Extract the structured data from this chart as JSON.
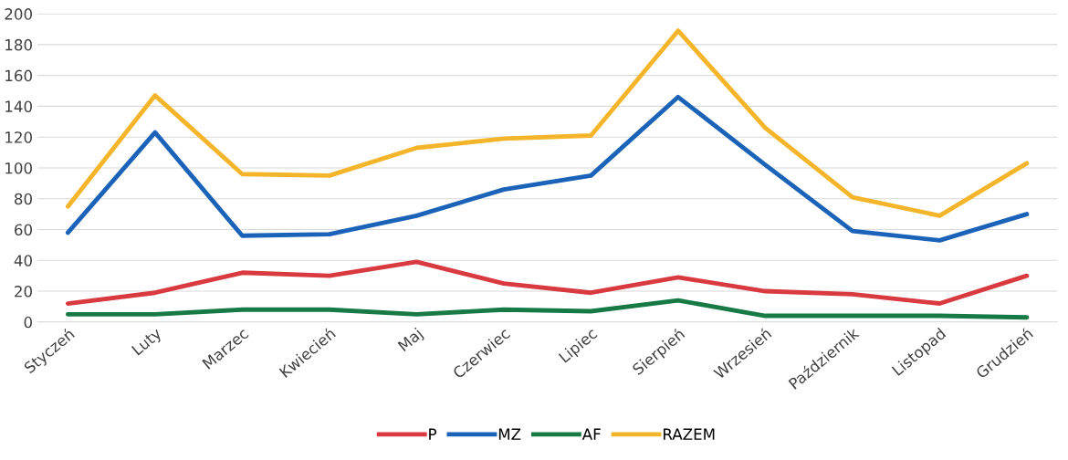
{
  "chart_data": {
    "type": "line",
    "categories": [
      "Styczeń",
      "Luty",
      "Marzec",
      "Kwiecień",
      "Maj",
      "Czerwiec",
      "Lipiec",
      "Sierpień",
      "Wrzesień",
      "Październik",
      "Listopad",
      "Grudzień"
    ],
    "series": [
      {
        "name": "P",
        "color": "#d93a3f",
        "values": [
          12,
          19,
          32,
          30,
          39,
          25,
          19,
          29,
          20,
          18,
          12,
          30
        ]
      },
      {
        "name": "MZ",
        "color": "#1a63b8",
        "values": [
          58,
          123,
          56,
          57,
          69,
          86,
          95,
          146,
          102,
          59,
          53,
          70
        ]
      },
      {
        "name": "AF",
        "color": "#177a45",
        "values": [
          5,
          5,
          8,
          8,
          5,
          8,
          7,
          14,
          4,
          4,
          4,
          3
        ]
      },
      {
        "name": "RAZEM",
        "color": "#f5b52a",
        "values": [
          75,
          147,
          96,
          95,
          113,
          119,
          121,
          189,
          126,
          81,
          69,
          103
        ]
      }
    ],
    "ylim": [
      0,
      200
    ],
    "yticks": [
      0,
      20,
      40,
      60,
      80,
      100,
      120,
      140,
      160,
      180,
      200
    ],
    "grid": "y",
    "legend": "bottom",
    "marker": "none",
    "line_style": "solid"
  }
}
